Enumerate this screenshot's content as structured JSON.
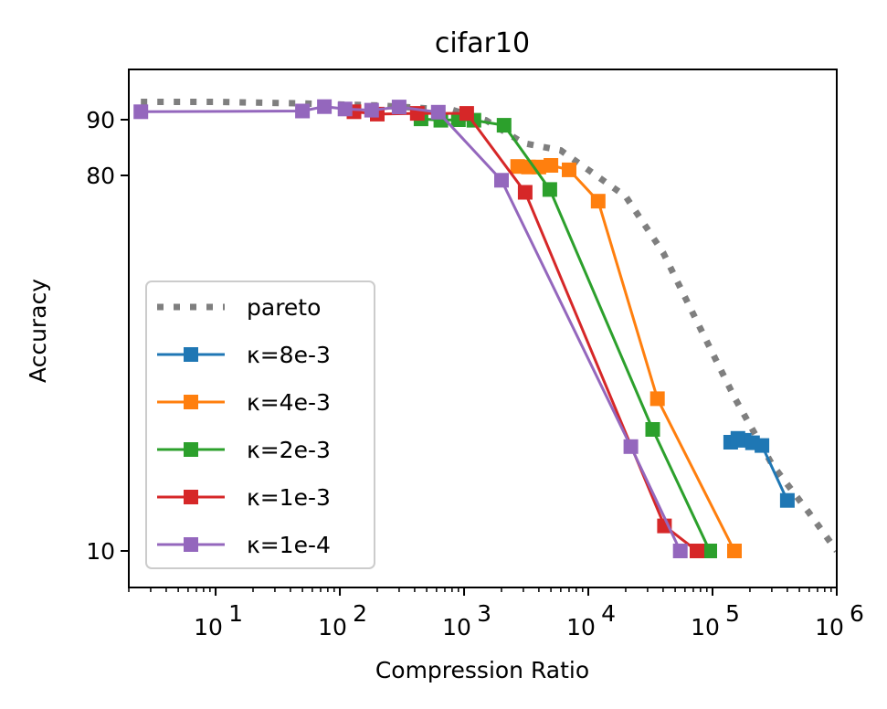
{
  "chart_data": {
    "type": "line",
    "title": "cifar10",
    "xlabel": "Compression Ratio",
    "ylabel": "Accuracy",
    "x_scale": "log",
    "xlim": [
      2,
      1000000
    ],
    "ylim_display": [
      5,
      99
    ],
    "x_ticks": [
      {
        "value": 10,
        "base": "10",
        "exp": "1"
      },
      {
        "value": 100,
        "base": "10",
        "exp": "2"
      },
      {
        "value": 1000,
        "base": "10",
        "exp": "3"
      },
      {
        "value": 10000,
        "base": "10",
        "exp": "4"
      },
      {
        "value": 100000,
        "base": "10",
        "exp": "5"
      },
      {
        "value": 1000000,
        "base": "10",
        "exp": "6"
      }
    ],
    "y_ticks": [
      {
        "value": 90,
        "label": "90"
      },
      {
        "value": 80,
        "label": "80"
      },
      {
        "value": 10,
        "label": "10"
      }
    ],
    "legend_position": "lower-left",
    "grid": false,
    "series": [
      {
        "name": "pareto",
        "color": "#7f7f7f",
        "style": "dotted",
        "x": [
          2.5,
          10,
          50,
          200,
          800,
          1500,
          3000,
          6000,
          10000,
          20000,
          40000,
          80000,
          150000,
          300000,
          600000,
          1000000
        ],
        "y": [
          94.5,
          94.5,
          94.1,
          93.6,
          92.5,
          89.9,
          85.8,
          84.5,
          81.0,
          74.8,
          63.0,
          48.9,
          37.0,
          26.0,
          17.0,
          10.0
        ]
      },
      {
        "name": "κ=8e-3",
        "color": "#1f77b4",
        "style": "solid",
        "x": [
          140000,
          160000,
          180000,
          210000,
          250000,
          400000
        ],
        "y": [
          30.0,
          30.6,
          30.3,
          29.9,
          29.4,
          19.3
        ]
      },
      {
        "name": "κ=4e-3",
        "color": "#ff7f0e",
        "style": "solid",
        "x": [
          2700,
          3300,
          4000,
          5000,
          7000,
          12000,
          36000,
          150000
        ],
        "y": [
          81.6,
          81.5,
          81.5,
          81.8,
          81.0,
          73.8,
          36.8,
          10.0
        ]
      },
      {
        "name": "κ=2e-3",
        "color": "#2ca02c",
        "style": "solid",
        "x": [
          450,
          650,
          900,
          1200,
          2100,
          4900,
          33000,
          95000
        ],
        "y": [
          90.2,
          89.9,
          90.0,
          89.9,
          89.0,
          76.5,
          32.0,
          10.0
        ]
      },
      {
        "name": "κ=1e-3",
        "color": "#d62728",
        "style": "solid",
        "x": [
          130,
          200,
          420,
          1050,
          3100,
          41000,
          75000
        ],
        "y": [
          92.0,
          91.4,
          91.6,
          91.6,
          75.8,
          14.6,
          10.0
        ]
      },
      {
        "name": "κ=1e-4",
        "color": "#9467bd",
        "style": "solid",
        "x": [
          2.5,
          50,
          75,
          110,
          180,
          300,
          620,
          2000,
          22000,
          55000
        ],
        "y": [
          92.0,
          92.2,
          93.3,
          92.7,
          92.4,
          93.2,
          91.9,
          78.8,
          29.2,
          10.0
        ]
      }
    ]
  }
}
